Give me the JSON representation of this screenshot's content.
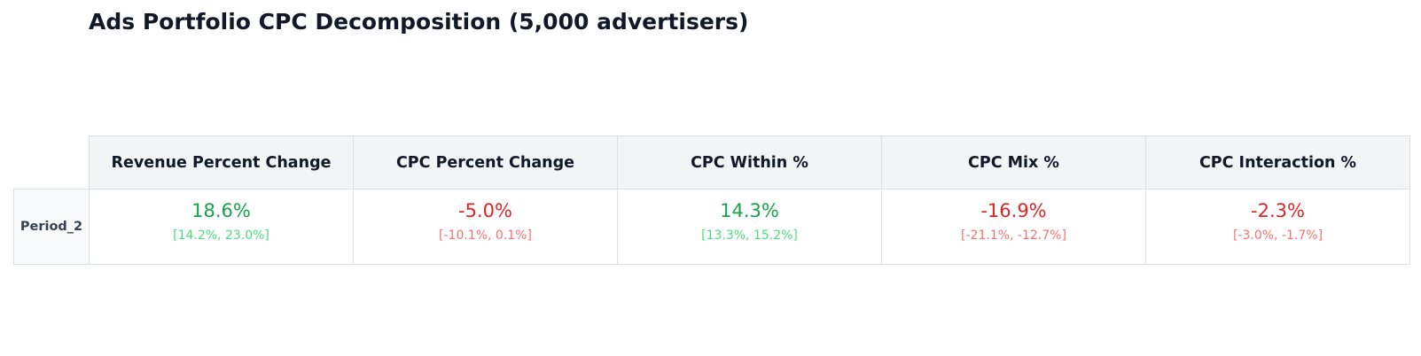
{
  "title": "Ads Portfolio CPC Decomposition (5,000 advertisers)",
  "colors": {
    "positive": "#16a34a",
    "positive_light": "#4ade80",
    "negative": "#dc2626",
    "negative_light": "#f87171"
  },
  "table": {
    "columns": [
      "Revenue Percent Change",
      "CPC Percent Change",
      "CPC Within %",
      "CPC Mix %",
      "CPC Interaction %"
    ],
    "rows": [
      {
        "label": "Period_2",
        "cells": [
          {
            "value": "18.6%",
            "ci": "[14.2%, 23.0%]",
            "sign": "positive"
          },
          {
            "value": "-5.0%",
            "ci": "[-10.1%, 0.1%]",
            "sign": "negative"
          },
          {
            "value": "14.3%",
            "ci": "[13.3%, 15.2%]",
            "sign": "positive"
          },
          {
            "value": "-16.9%",
            "ci": "[-21.1%, -12.7%]",
            "sign": "negative"
          },
          {
            "value": "-2.3%",
            "ci": "[-3.0%, -1.7%]",
            "sign": "negative"
          }
        ]
      }
    ]
  }
}
